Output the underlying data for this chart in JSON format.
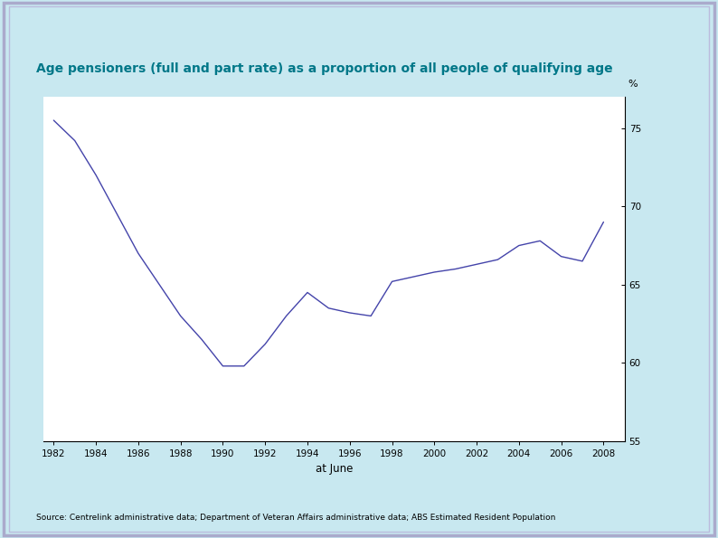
{
  "title": "Age pensioners (full and part rate) as a proportion of all people of qualifying age",
  "xlabel": "at June",
  "ylabel": "%",
  "source": "Source: Centrelink administrative data; Department of Veteran Affairs administrative data; ABS Estimated Resident Population",
  "fig_bg_color": "#c8e8f0",
  "plot_bg_color": "#ffffff",
  "border_color": "#aaaacc",
  "line_color": "#4444aa",
  "title_color": "#007788",
  "ylim": [
    55,
    77
  ],
  "yticks": [
    55,
    60,
    65,
    70,
    75
  ],
  "xticks": [
    1982,
    1984,
    1986,
    1988,
    1990,
    1992,
    1994,
    1996,
    1998,
    2000,
    2002,
    2004,
    2006,
    2008
  ],
  "xlim": [
    1981.5,
    2009
  ],
  "years": [
    1982,
    1983,
    1984,
    1985,
    1986,
    1987,
    1988,
    1989,
    1990,
    1991,
    1992,
    1993,
    1994,
    1995,
    1996,
    1997,
    1998,
    1999,
    2000,
    2001,
    2002,
    2003,
    2004,
    2005,
    2006,
    2007,
    2008
  ],
  "values": [
    75.5,
    74.2,
    72.0,
    69.5,
    67.0,
    65.0,
    63.0,
    61.5,
    59.8,
    59.8,
    61.2,
    63.0,
    64.5,
    63.5,
    63.2,
    63.0,
    65.2,
    65.5,
    65.8,
    66.0,
    66.3,
    66.6,
    67.5,
    67.8,
    66.8,
    66.5,
    69.0
  ]
}
